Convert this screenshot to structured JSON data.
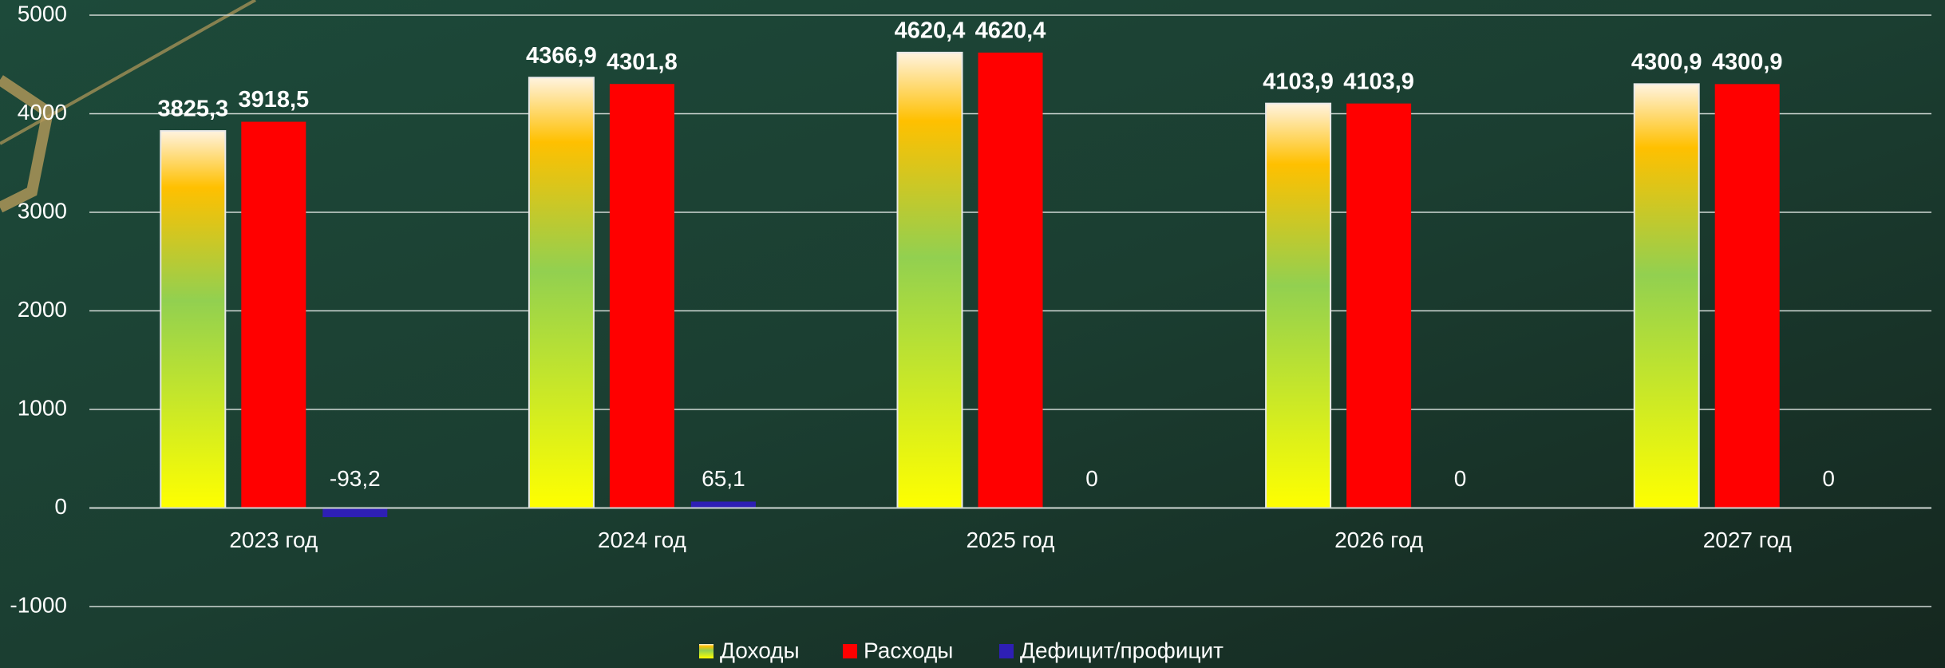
{
  "chart_data": {
    "type": "bar",
    "categories": [
      "2023 год",
      "2024 год",
      "2025 год",
      "2026 год",
      "2027 год"
    ],
    "series": [
      {
        "name": "Доходы",
        "color": "#ffc000",
        "values": [
          3825.3,
          4366.9,
          4620.4,
          4103.9,
          4300.9
        ],
        "value_labels": [
          "3825,3",
          "4366,9",
          "4620,4",
          "4103,9",
          "4300,9"
        ]
      },
      {
        "name": "Расходы",
        "color": "#ff0000",
        "values": [
          3918.5,
          4301.8,
          4620.4,
          4103.9,
          4300.9
        ],
        "value_labels": [
          "3918,5",
          "4301,8",
          "4620,4",
          "4103,9",
          "4300,9"
        ]
      },
      {
        "name": "Дефицит/профицит",
        "color": "#2e1fb5",
        "values": [
          -93.2,
          65.1,
          0,
          0,
          0
        ],
        "value_labels": [
          "-93,2",
          "65,1",
          "0",
          "0",
          "0"
        ]
      }
    ],
    "ylim": [
      -1000,
      5000
    ],
    "yticks": [
      -1000,
      0,
      1000,
      2000,
      3000,
      4000,
      5000
    ],
    "grid": true,
    "legend": "bottom"
  }
}
